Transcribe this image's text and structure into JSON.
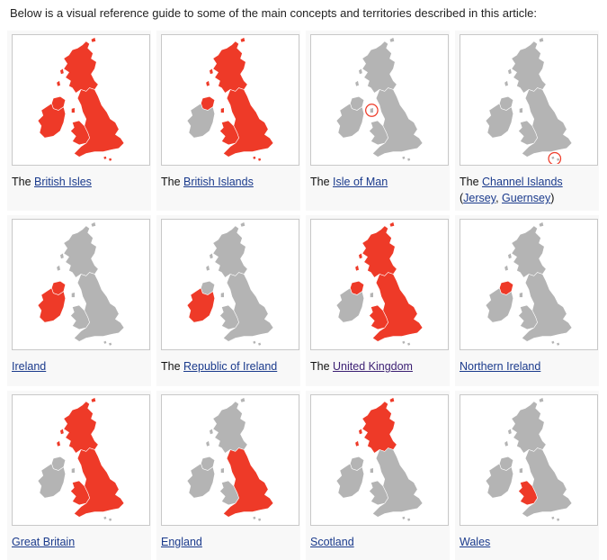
{
  "intro_text": "Below is a visual reference guide to some of the main concepts and territories described in this article:",
  "colors": {
    "highlight": "#ee3a28",
    "base_land": "#b4b4b4",
    "link": "#1a3a8c",
    "visited_link": "#3b1f73",
    "card_bg": "#f8f8f8"
  },
  "cards": [
    {
      "id": "british-isles",
      "prefix": "The ",
      "link": "British Isles",
      "highlight": [
        "gb",
        "ireland",
        "iom",
        "ci"
      ]
    },
    {
      "id": "british-islands",
      "prefix": "The ",
      "link": "British Islands",
      "highlight": [
        "gb",
        "ni",
        "iom",
        "ci"
      ]
    },
    {
      "id": "isle-of-man",
      "prefix": "The ",
      "link": "Isle of Man",
      "highlight": [],
      "circle": "iom"
    },
    {
      "id": "channel-islands",
      "prefix": "The ",
      "link": "Channel Islands",
      "paren_open": "(",
      "link2": "Jersey",
      "sep": ", ",
      "link3": "Guernsey",
      "paren_close": ")",
      "highlight": [],
      "circle": "ci"
    },
    {
      "id": "ireland",
      "prefix": "",
      "link": "Ireland",
      "highlight": [
        "ireland"
      ]
    },
    {
      "id": "republic-of-ireland",
      "prefix": "The ",
      "link": "Republic of Ireland",
      "highlight": [
        "roi"
      ]
    },
    {
      "id": "united-kingdom",
      "prefix": "The ",
      "link": "United Kingdom",
      "highlight": [
        "gb",
        "ni"
      ],
      "visited": true
    },
    {
      "id": "northern-ireland",
      "prefix": "",
      "link": "Northern Ireland",
      "highlight": [
        "ni"
      ]
    },
    {
      "id": "great-britain",
      "prefix": "",
      "link": "Great Britain",
      "highlight": [
        "gb"
      ]
    },
    {
      "id": "england",
      "prefix": "",
      "link": "England",
      "highlight": [
        "england"
      ]
    },
    {
      "id": "scotland",
      "prefix": "",
      "link": "Scotland",
      "highlight": [
        "scotland"
      ]
    },
    {
      "id": "wales",
      "prefix": "",
      "link": "Wales",
      "highlight": [
        "wales"
      ]
    }
  ]
}
